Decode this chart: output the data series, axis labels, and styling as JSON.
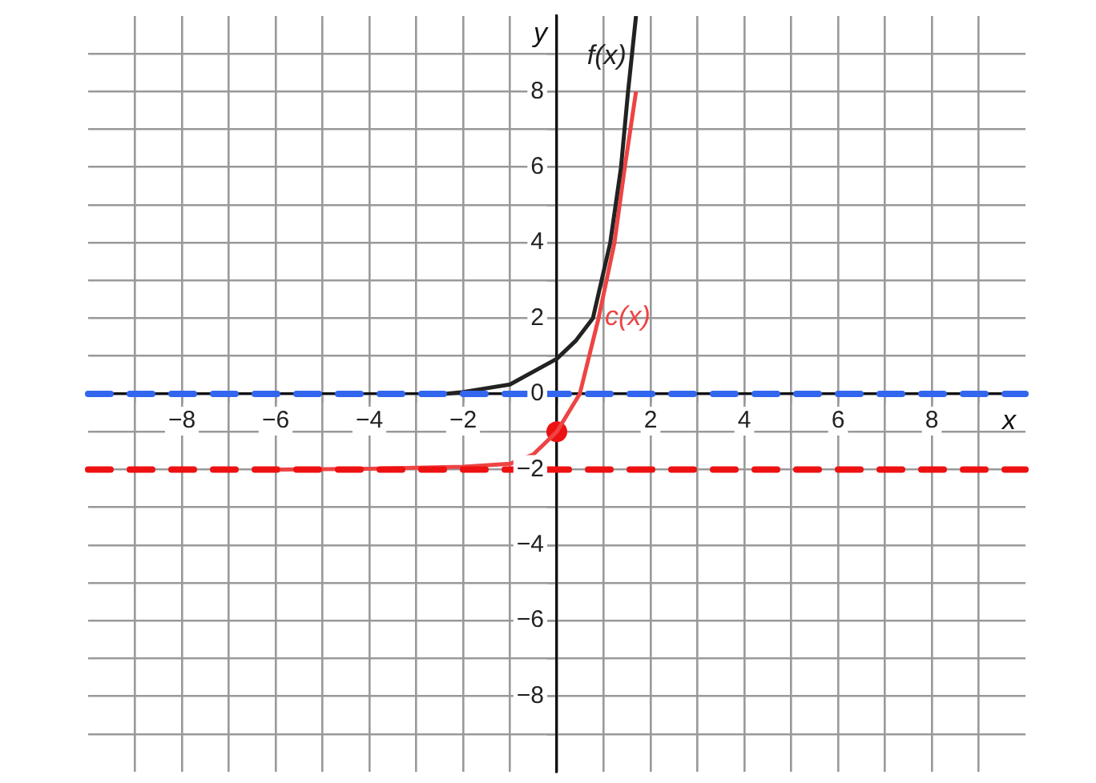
{
  "chart_data": {
    "type": "line",
    "xlabel": "x",
    "ylabel": "y",
    "xlim": [
      -10,
      10
    ],
    "ylim": [
      -10,
      10
    ],
    "xticks": [
      {
        "value": -9,
        "label": null
      },
      -8,
      {
        "value": -7,
        "label": null
      },
      -6,
      {
        "value": -5,
        "label": null
      },
      -4,
      {
        "value": -3,
        "label": null
      },
      -2,
      {
        "value": -1,
        "label": null
      },
      {
        "value": 0,
        "label": null
      },
      {
        "value": 1,
        "label": null
      },
      2,
      {
        "value": 3,
        "label": null
      },
      4,
      {
        "value": 5,
        "label": null
      },
      6,
      {
        "value": 7,
        "label": null
      },
      8,
      {
        "value": 9,
        "label": null
      }
    ],
    "yticks": [
      {
        "value": -9,
        "label": null
      },
      -8,
      {
        "value": -7,
        "label": null
      },
      -6,
      {
        "value": -5,
        "label": null
      },
      -4,
      {
        "value": -3,
        "label": null
      },
      -2,
      {
        "value": -1,
        "label": null
      },
      0,
      {
        "value": 1,
        "label": null
      },
      2,
      {
        "value": 3,
        "label": null
      },
      4,
      {
        "value": 5,
        "label": null
      },
      6,
      {
        "value": 7,
        "label": null
      },
      8,
      {
        "value": 9,
        "label": null
      }
    ],
    "grid": true,
    "legend": false,
    "marker": "none",
    "line_style": "solid",
    "series": [
      {
        "name": "f(x)",
        "color": "#222222",
        "x": [
          -2.4,
          -2,
          -1,
          0,
          0.4,
          0.77,
          1.14,
          1.37,
          1.52,
          1.69
        ],
        "values": [
          0,
          0.05,
          0.25,
          0.93,
          1.4,
          2,
          4,
          6,
          8,
          10
        ]
      },
      {
        "name": "c(x)",
        "color": "#ee4444",
        "x": [
          -5.9,
          -4,
          -2,
          -1,
          -0.5,
          0,
          0.49,
          0.89,
          1.23,
          1.45,
          1.69
        ],
        "values": [
          -2,
          -1.98,
          -1.93,
          -1.85,
          -1.6,
          -1,
          0,
          2,
          4,
          6,
          8
        ]
      },
      {
        "type": "scatter",
        "color": "#ee1111",
        "marker": "circle",
        "x": [
          0
        ],
        "values": [
          -1
        ]
      }
    ],
    "ref_lines": [
      {
        "axis": "y",
        "value": 0,
        "color": "#3366ee",
        "line_style": "dashed"
      },
      {
        "axis": "y",
        "value": -2,
        "color": "#ee1111",
        "line_style": "dashed"
      }
    ]
  }
}
